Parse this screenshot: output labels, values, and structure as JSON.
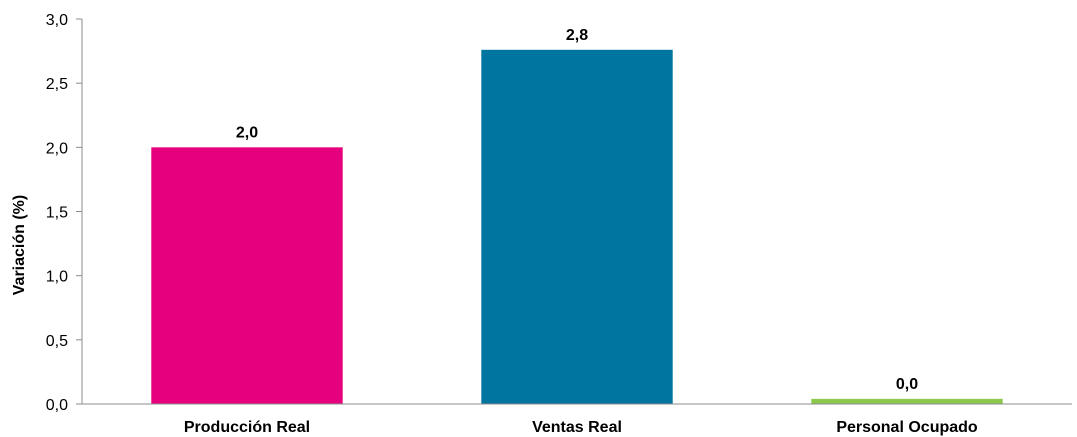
{
  "chart_data": {
    "type": "bar",
    "title": "",
    "xlabel": "",
    "ylabel": "Variación (%)",
    "ylim": [
      0,
      3.0
    ],
    "yticks": [
      0.0,
      0.5,
      1.0,
      1.5,
      2.0,
      2.5,
      3.0
    ],
    "ytick_labels": [
      "0,0",
      "0,5",
      "1,0",
      "1,5",
      "2,0",
      "2,5",
      "3,0"
    ],
    "categories": [
      "Producción Real",
      "Ventas Real",
      "Personal Ocupado"
    ],
    "values": [
      2.0,
      2.76,
      0.04
    ],
    "data_labels": [
      "2,0",
      "2,8",
      "0,0"
    ],
    "colors": [
      "#e6007e",
      "#0075a0",
      "#8cc84b"
    ],
    "grid": false,
    "legend": "none"
  }
}
